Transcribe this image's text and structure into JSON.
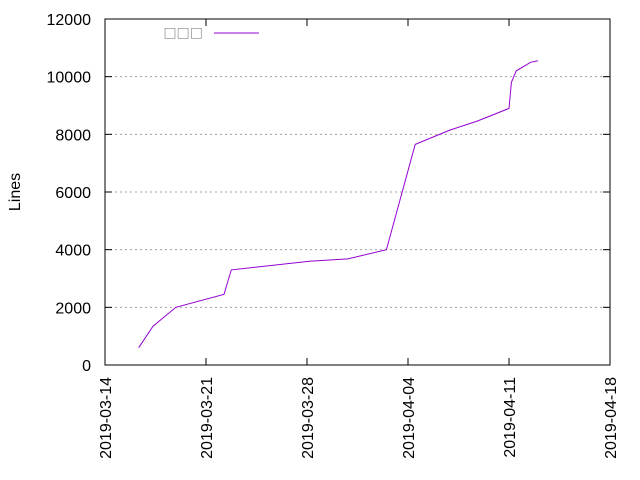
{
  "chart_data": {
    "type": "line",
    "title": "",
    "xlabel": "",
    "ylabel": "Lines",
    "x_type": "date",
    "xlim": [
      "2019-03-14",
      "2019-04-18"
    ],
    "ylim": [
      0,
      12000
    ],
    "x_tick_labels": [
      "2019-03-14",
      "2019-03-21",
      "2019-03-28",
      "2019-04-04",
      "2019-04-11",
      "2019-04-18"
    ],
    "y_tick_labels": [
      "0",
      "2000",
      "4000",
      "6000",
      "8000",
      "10000",
      "12000"
    ],
    "y_tick_values": [
      0,
      2000,
      4000,
      6000,
      8000,
      10000,
      12000
    ],
    "grid": true,
    "legend_position": "top-left",
    "series": [
      {
        "name": "□□□",
        "color": "#9400d3",
        "x": [
          "2019-03-16 08:00",
          "2019-03-17 08:00",
          "2019-03-18 22:00",
          "2019-03-22 06:00",
          "2019-03-22 18:00",
          "2019-03-28 04:00",
          "2019-03-30 20:00",
          "2019-04-02 12:00",
          "2019-04-04 12:00",
          "2019-04-06 22:00",
          "2019-04-08 18:00",
          "2019-04-09 18:00",
          "2019-04-11 00:00",
          "2019-04-11 04:00",
          "2019-04-11 12:00",
          "2019-04-12 12:00",
          "2019-04-13 00:00"
        ],
        "y": [
          600,
          1350,
          2000,
          2450,
          3300,
          3600,
          3680,
          4000,
          7650,
          8150,
          8450,
          8650,
          8900,
          9800,
          10200,
          10500,
          10550
        ]
      }
    ]
  }
}
